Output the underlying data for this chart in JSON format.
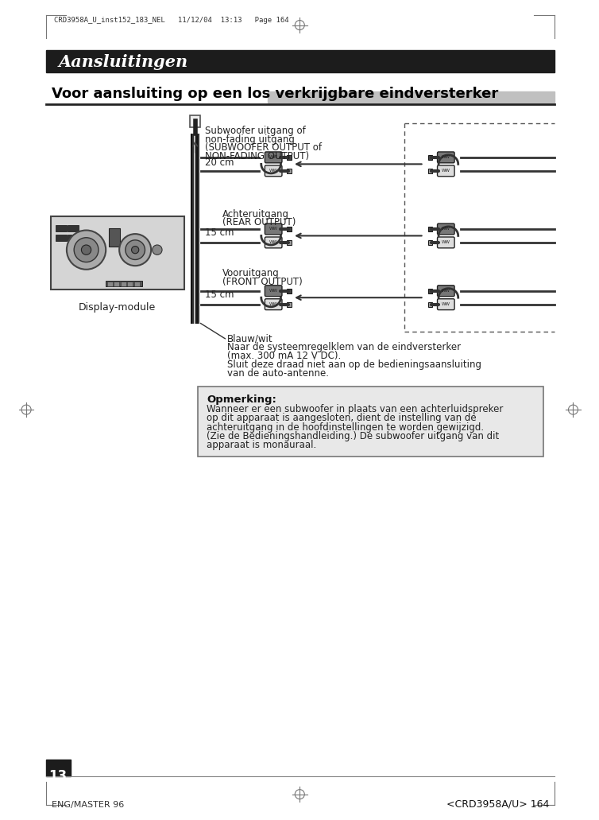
{
  "bg_color": "#ffffff",
  "header_bg": "#1c1c1c",
  "header_text": "Aansluitingen",
  "header_text_color": "#ffffff",
  "section_title": "Voor aansluiting op een los verkrijgbare eindversterker",
  "top_label": "CRD3958A_U_inst152_183_NEL   11/12/04  13:13   Page 164",
  "subwoofer_label_lines": [
    "Subwoofer uitgang of",
    "non-fading uitgang",
    "(SUBWOOFER OUTPUT of",
    "NON-FADING OUTPUT)"
  ],
  "rear_label_lines": [
    "Achteruitgang",
    "(REAR OUTPUT)"
  ],
  "front_label_lines": [
    "Vooruitgang",
    "(FRONT OUTPUT)"
  ],
  "cm_20": "20 cm",
  "cm_15a": "15 cm",
  "cm_15b": "15 cm",
  "display_label": "Display-module",
  "blue_wire_lines": [
    "Blauw/wit",
    "Naar de systeemregelklem van de eindversterker",
    "(max. 300 mA 12 V DC).",
    "Sluit deze draad niet aan op de bedieningsaansluiting",
    "van de auto-antenne."
  ],
  "note_bold": "Opmerking:",
  "note_lines": [
    "Wanneer er een subwoofer in plaats van een achterluidspreker",
    "op dit apparaat is aangesloten, dient de instelling van de",
    "achteruitgang in de hoofdinstellingen te worden gewijzigd.",
    "(Zie de Bedieningshandleiding.) De subwoofer uitgang van dit",
    "apparaat is monauraal."
  ],
  "bottom_left_num": "13",
  "bottom_center": "ENG/MASTER 96",
  "bottom_right": "<CRD3958A/U> 164",
  "note_bg": "#e8e8e8"
}
